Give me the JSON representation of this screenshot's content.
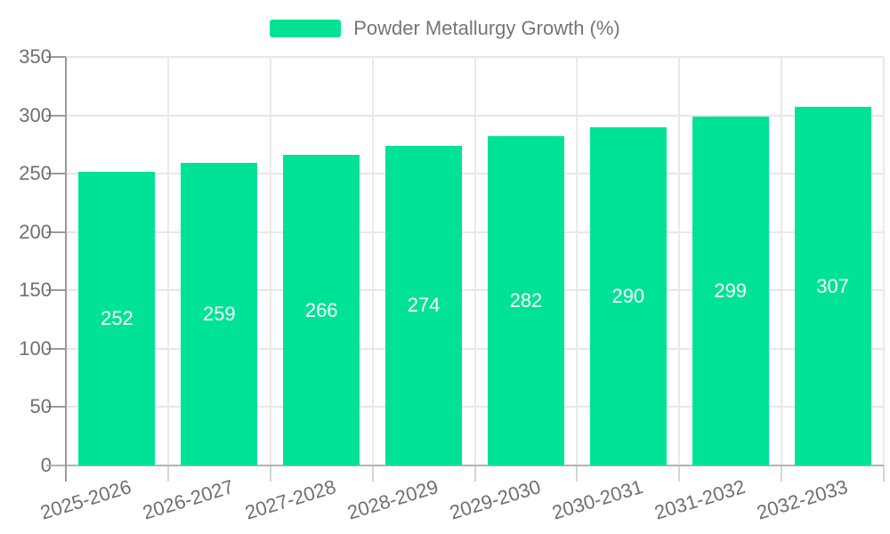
{
  "legend": {
    "label": "Powder Metallurgy Growth (%)",
    "swatch_color": "#00E396"
  },
  "chart_data": {
    "type": "bar",
    "title": "Powder Metallurgy Growth (%)",
    "categories": [
      "2025-2026",
      "2026-2027",
      "2027-2028",
      "2028-2029",
      "2029-2030",
      "2030-2031",
      "2031-2032",
      "2032-2033"
    ],
    "values": [
      252,
      259,
      266,
      274,
      282,
      290,
      299,
      307
    ],
    "xlabel": "",
    "ylabel": "",
    "ylim": [
      0,
      350
    ],
    "y_ticks": [
      0,
      50,
      100,
      150,
      200,
      250,
      300,
      350
    ],
    "grid": true,
    "legend_position": "top-center",
    "x_label_rotation_deg": -17,
    "value_labels": "white, centered inside bars",
    "colors": {
      "bar": "#00E396",
      "value_label": "#ffffff",
      "axis_text": "#6f6f6f",
      "legend_text": "#757575",
      "grid_line": "#e7e7e7",
      "x_axis_line": "#b3b3b3",
      "y_axis_line": "#9a9a9a",
      "minor_tick": "#d4d4d4"
    }
  }
}
